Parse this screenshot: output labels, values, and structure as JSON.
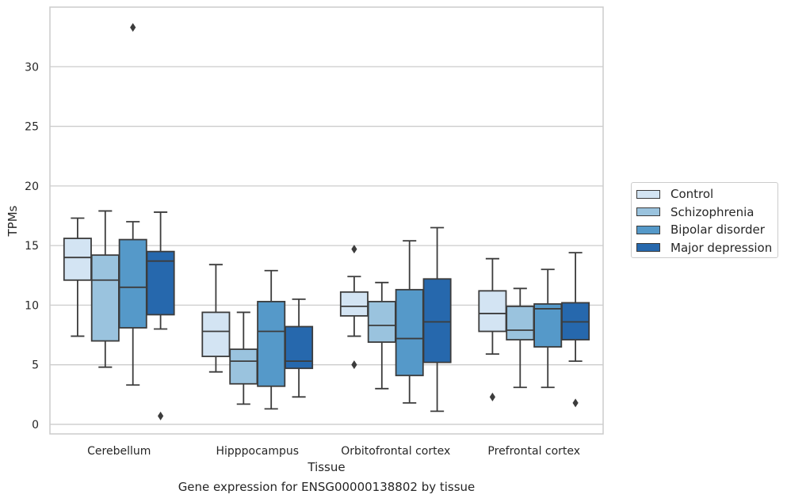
{
  "chart_data": {
    "type": "box",
    "title": "",
    "xlabel": "Tissue",
    "ylabel": "TPMs",
    "caption": "Gene expression for ENSG00000138802 by tissue",
    "ylim": [
      -0.8,
      35
    ],
    "yticks": [
      0,
      5,
      10,
      15,
      20,
      25,
      30
    ],
    "grid": "horizontal",
    "legend_position": "right",
    "categories": [
      "Cerebellum",
      "Hipppocampus",
      "Orbitofrontal cortex",
      "Prefrontal cortex"
    ],
    "series": [
      {
        "name": "Control",
        "color": "#d3e4f3",
        "boxes": [
          {
            "whislo": 7.4,
            "q1": 12.1,
            "med": 14.0,
            "q3": 15.6,
            "whishi": 17.3,
            "fliers": []
          },
          {
            "whislo": 4.4,
            "q1": 5.7,
            "med": 7.8,
            "q3": 9.4,
            "whishi": 13.4,
            "fliers": []
          },
          {
            "whislo": 7.4,
            "q1": 9.1,
            "med": 9.9,
            "q3": 11.1,
            "whishi": 12.4,
            "fliers": [
              14.7,
              5.0
            ]
          },
          {
            "whislo": 5.9,
            "q1": 7.8,
            "med": 9.3,
            "q3": 11.2,
            "whishi": 13.9,
            "fliers": [
              2.3
            ]
          }
        ]
      },
      {
        "name": "Schizophrenia",
        "color": "#9ac3de",
        "boxes": [
          {
            "whislo": 4.8,
            "q1": 7.0,
            "med": 12.1,
            "q3": 14.2,
            "whishi": 17.9,
            "fliers": []
          },
          {
            "whislo": 1.7,
            "q1": 3.4,
            "med": 5.3,
            "q3": 6.3,
            "whishi": 9.4,
            "fliers": []
          },
          {
            "whislo": 3.0,
            "q1": 6.9,
            "med": 8.3,
            "q3": 10.3,
            "whishi": 11.9,
            "fliers": []
          },
          {
            "whislo": 3.1,
            "q1": 7.1,
            "med": 7.9,
            "q3": 9.9,
            "whishi": 11.4,
            "fliers": []
          }
        ]
      },
      {
        "name": "Bipolar disorder",
        "color": "#5599c9",
        "boxes": [
          {
            "whislo": 3.3,
            "q1": 8.1,
            "med": 11.5,
            "q3": 15.5,
            "whishi": 17.0,
            "fliers": [
              33.3
            ]
          },
          {
            "whislo": 1.3,
            "q1": 3.2,
            "med": 7.8,
            "q3": 10.3,
            "whishi": 12.9,
            "fliers": []
          },
          {
            "whislo": 1.8,
            "q1": 4.1,
            "med": 7.2,
            "q3": 11.3,
            "whishi": 15.4,
            "fliers": []
          },
          {
            "whislo": 3.1,
            "q1": 6.5,
            "med": 9.7,
            "q3": 10.1,
            "whishi": 13.0,
            "fliers": []
          }
        ]
      },
      {
        "name": "Major depression",
        "color": "#2668ad",
        "boxes": [
          {
            "whislo": 8.0,
            "q1": 9.2,
            "med": 13.7,
            "q3": 14.5,
            "whishi": 17.8,
            "fliers": [
              0.7
            ]
          },
          {
            "whislo": 2.3,
            "q1": 4.7,
            "med": 5.3,
            "q3": 8.2,
            "whishi": 10.5,
            "fliers": []
          },
          {
            "whislo": 1.1,
            "q1": 5.2,
            "med": 8.6,
            "q3": 12.2,
            "whishi": 16.5,
            "fliers": []
          },
          {
            "whislo": 5.3,
            "q1": 7.1,
            "med": 8.6,
            "q3": 10.2,
            "whishi": 14.4,
            "fliers": [
              1.8
            ]
          }
        ]
      }
    ]
  }
}
